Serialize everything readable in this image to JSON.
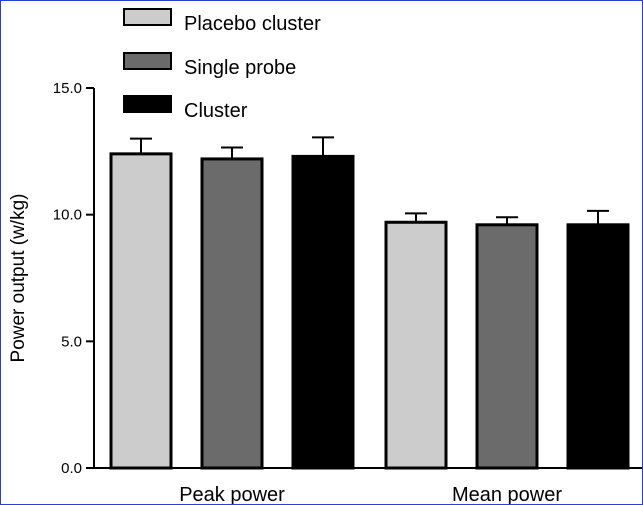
{
  "chart_data": {
    "type": "bar",
    "categories": [
      "Peak power",
      "Mean power"
    ],
    "series": [
      {
        "name": "Placebo cluster",
        "values": [
          12.4,
          9.7
        ],
        "errors": [
          0.6,
          0.35
        ],
        "color": "#cccccc"
      },
      {
        "name": "Single probe",
        "values": [
          12.2,
          9.6
        ],
        "errors": [
          0.45,
          0.3
        ],
        "color": "#6b6b6b"
      },
      {
        "name": "Cluster",
        "values": [
          12.3,
          9.6
        ],
        "errors": [
          0.75,
          0.55
        ],
        "color": "#000000"
      }
    ],
    "ylabel": "Power  output (w/kg)",
    "xlabel": "",
    "ylim": [
      0,
      15
    ],
    "yticks": [
      {
        "value": 0,
        "label": "0.0"
      },
      {
        "value": 5,
        "label": "5.0"
      },
      {
        "value": 10,
        "label": "10.0"
      },
      {
        "value": 15,
        "label": "15.0"
      }
    ],
    "legend_position": "top-left",
    "grid": false
  }
}
